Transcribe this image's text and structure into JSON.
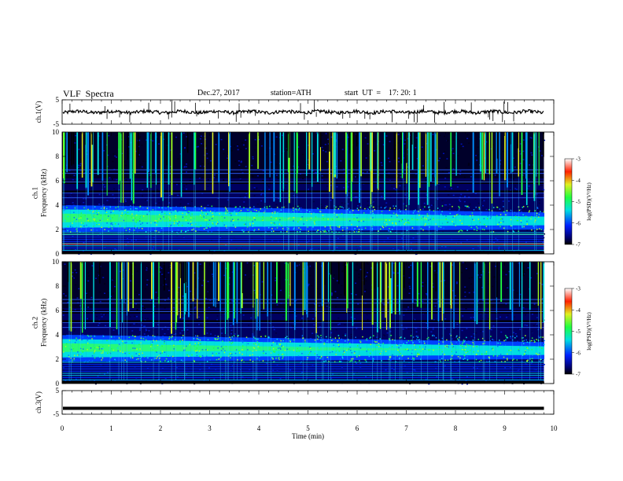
{
  "header": {
    "title": "VLF  Spectra",
    "date": "Dec.27, 2017",
    "station": "station=ATH",
    "start": "start  UT  =    17: 20: 1"
  },
  "chart_data": [
    {
      "type": "line",
      "panel": "ch1-waveform",
      "ylabel": "ch.1(V)",
      "ylim": [
        -5,
        5
      ],
      "yticks": [
        "5",
        "-5"
      ],
      "x_range_min": [
        0,
        9.8
      ],
      "description_level": "signal mostly near 0 V with small fluctuations"
    },
    {
      "type": "heatmap",
      "panel": "ch1-spectrogram",
      "ylabel": "ch.1\nFrequency  (kHz)",
      "ylabel_lines": [
        "ch.1",
        "Frequency  (kHz)"
      ],
      "ylim": [
        0,
        10
      ],
      "yticks": [
        "0",
        "2",
        "4",
        "6",
        "8",
        "10"
      ],
      "colorbar": {
        "label": "log(PSD)(V²/Hz)",
        "ticks": [
          "-3",
          "-4",
          "-5",
          "-6",
          "-7"
        ],
        "range": [
          -7,
          -3
        ]
      }
    },
    {
      "type": "heatmap",
      "panel": "ch2-spectrogram",
      "ylabel_lines": [
        "ch.2",
        "Frequency  (kHz)"
      ],
      "ylim": [
        0,
        10
      ],
      "yticks": [
        "0",
        "2",
        "4",
        "6",
        "8",
        "10"
      ],
      "colorbar": {
        "label": "log(PSD)(V²/Hz)",
        "ticks": [
          "-3",
          "-4",
          "-5",
          "-6",
          "-7"
        ],
        "range": [
          -7,
          -3
        ]
      }
    },
    {
      "type": "line",
      "panel": "ch3-waveform",
      "ylabel": "ch.3(V)",
      "ylim": [
        -5,
        5
      ],
      "yticks": [
        "5",
        "-5"
      ],
      "level": -2.5
    }
  ],
  "xaxis": {
    "label": "Time  (min)",
    "ticks": [
      "0",
      "1",
      "2",
      "3",
      "4",
      "5",
      "6",
      "7",
      "8",
      "9",
      "10"
    ],
    "range": [
      0,
      10
    ]
  },
  "colors": {
    "black": "#000000",
    "navy": "#000060",
    "blue": "#0020ff",
    "cyan": "#00e0e0",
    "green": "#20ff40",
    "yellow": "#e0f020",
    "red": "#ff2000"
  }
}
